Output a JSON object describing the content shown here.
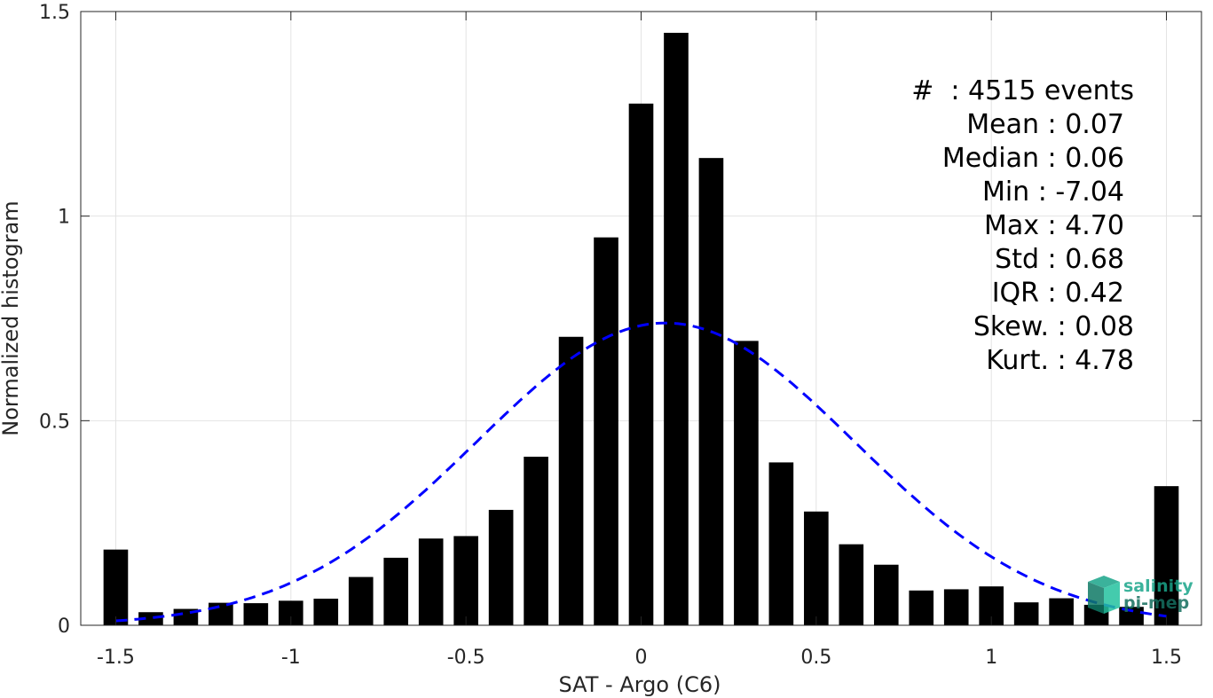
{
  "chart_data": {
    "type": "bar",
    "xlabel": "SAT - Argo (C6)",
    "ylabel": "Normalized histogram",
    "xlim": [
      -1.6,
      1.6
    ],
    "ylim": [
      0,
      1.5
    ],
    "xticks": [
      -1.5,
      -1,
      -0.5,
      0,
      0.5,
      1,
      1.5
    ],
    "xtick_labels": [
      "-1.5",
      "-1",
      "-0.5",
      "0",
      "0.5",
      "1",
      "1.5"
    ],
    "yticks": [
      0,
      0.5,
      1,
      1.5
    ],
    "ytick_labels": [
      "0",
      "0.5",
      "1",
      "1.5"
    ],
    "grid": true,
    "bar_width": 0.07,
    "bar_color": "#000000",
    "x": [
      -1.5,
      -1.4,
      -1.3,
      -1.2,
      -1.1,
      -1.0,
      -0.9,
      -0.8,
      -0.7,
      -0.6,
      -0.5,
      -0.4,
      -0.3,
      -0.2,
      -0.1,
      0.0,
      0.1,
      0.2,
      0.3,
      0.4,
      0.5,
      0.6,
      0.7,
      0.8,
      0.9,
      1.0,
      1.1,
      1.2,
      1.3,
      1.4,
      1.5
    ],
    "values": [
      0.185,
      0.032,
      0.04,
      0.055,
      0.054,
      0.06,
      0.065,
      0.118,
      0.165,
      0.212,
      0.218,
      0.282,
      0.412,
      0.705,
      0.948,
      1.275,
      1.448,
      1.142,
      0.695,
      0.398,
      0.278,
      0.198,
      0.148,
      0.085,
      0.088,
      0.095,
      0.056,
      0.066,
      0.05,
      0.045,
      0.34
    ],
    "fit": {
      "type": "gaussian",
      "mean": 0.07,
      "std": 0.54,
      "color": "#0000ff",
      "style": "dashed",
      "x_range": [
        -1.5,
        1.5
      ]
    }
  },
  "stats": {
    "events": "#  : 4515 events",
    "mean": "Mean : 0.07",
    "median": "Median : 0.06",
    "min": "Min : -7.04",
    "max": "Max : 4.70",
    "std": "Std : 0.68",
    "iqr": "IQR : 0.42",
    "skew": "Skew. : 0.08",
    "kurt": "Kurt. : 4.78"
  },
  "logo": {
    "line1": "salinity",
    "line2": "pi-mep",
    "color": "#1aa58a",
    "color_dark": "#146e5e"
  }
}
